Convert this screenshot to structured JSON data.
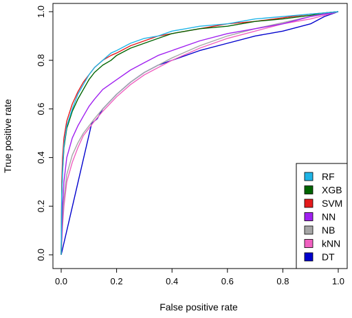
{
  "chart_data": {
    "type": "line",
    "xlabel": "False positive rate",
    "ylabel": "True positive rate",
    "xlim": [
      0,
      1
    ],
    "ylim": [
      0,
      1
    ],
    "xticks": [
      "0.0",
      "0.2",
      "0.4",
      "0.6",
      "0.8",
      "1.0"
    ],
    "yticks": [
      "0.0",
      "0.2",
      "0.4",
      "0.6",
      "0.8",
      "1.0"
    ],
    "grid": false,
    "legend_position": "bottom-right",
    "series": [
      {
        "name": "RF",
        "color": "#1fb4e6",
        "x": [
          0,
          0.002,
          0.005,
          0.01,
          0.02,
          0.04,
          0.06,
          0.08,
          0.1,
          0.12,
          0.15,
          0.18,
          0.2,
          0.25,
          0.3,
          0.35,
          0.4,
          0.45,
          0.5,
          0.6,
          0.7,
          0.8,
          0.9,
          0.95,
          1.0
        ],
        "y": [
          0,
          0.25,
          0.35,
          0.45,
          0.53,
          0.6,
          0.66,
          0.7,
          0.74,
          0.77,
          0.8,
          0.83,
          0.84,
          0.87,
          0.89,
          0.9,
          0.92,
          0.93,
          0.94,
          0.95,
          0.97,
          0.98,
          0.99,
          0.995,
          1.0
        ]
      },
      {
        "name": "XGB",
        "color": "#006400",
        "x": [
          0,
          0.002,
          0.005,
          0.01,
          0.02,
          0.04,
          0.06,
          0.08,
          0.1,
          0.12,
          0.15,
          0.18,
          0.2,
          0.25,
          0.3,
          0.35,
          0.4,
          0.45,
          0.5,
          0.6,
          0.7,
          0.8,
          0.9,
          0.95,
          1.0
        ],
        "y": [
          0,
          0.24,
          0.34,
          0.44,
          0.52,
          0.59,
          0.64,
          0.68,
          0.72,
          0.75,
          0.78,
          0.8,
          0.82,
          0.85,
          0.87,
          0.89,
          0.91,
          0.92,
          0.93,
          0.94,
          0.96,
          0.97,
          0.985,
          0.995,
          1.0
        ]
      },
      {
        "name": "SVM",
        "color": "#e41a1c",
        "x": [
          0,
          0.002,
          0.005,
          0.01,
          0.02,
          0.04,
          0.06,
          0.08,
          0.1,
          0.12,
          0.15,
          0.18,
          0.2,
          0.25,
          0.3,
          0.35,
          0.4,
          0.45,
          0.5,
          0.6,
          0.7,
          0.8,
          0.9,
          0.95,
          1.0
        ],
        "y": [
          0,
          0.3,
          0.4,
          0.48,
          0.55,
          0.62,
          0.67,
          0.71,
          0.74,
          0.77,
          0.8,
          0.82,
          0.83,
          0.86,
          0.88,
          0.9,
          0.91,
          0.92,
          0.93,
          0.95,
          0.96,
          0.975,
          0.99,
          0.995,
          1.0
        ]
      },
      {
        "name": "NN",
        "color": "#a020f0",
        "x": [
          0,
          0.005,
          0.01,
          0.02,
          0.04,
          0.06,
          0.08,
          0.1,
          0.12,
          0.15,
          0.2,
          0.25,
          0.3,
          0.35,
          0.4,
          0.5,
          0.6,
          0.7,
          0.8,
          0.9,
          0.95,
          1.0
        ],
        "y": [
          0,
          0.2,
          0.3,
          0.4,
          0.48,
          0.53,
          0.57,
          0.61,
          0.64,
          0.68,
          0.72,
          0.76,
          0.79,
          0.82,
          0.84,
          0.88,
          0.91,
          0.93,
          0.95,
          0.98,
          0.99,
          1.0
        ]
      },
      {
        "name": "NB",
        "color": "#a6a6a6",
        "x": [
          0,
          0.005,
          0.01,
          0.02,
          0.04,
          0.06,
          0.08,
          0.1,
          0.12,
          0.15,
          0.2,
          0.25,
          0.3,
          0.35,
          0.4,
          0.5,
          0.6,
          0.7,
          0.8,
          0.9,
          0.95,
          1.0
        ],
        "y": [
          0,
          0.15,
          0.23,
          0.33,
          0.41,
          0.46,
          0.5,
          0.53,
          0.56,
          0.6,
          0.66,
          0.71,
          0.75,
          0.78,
          0.81,
          0.86,
          0.9,
          0.93,
          0.955,
          0.98,
          0.99,
          1.0
        ]
      },
      {
        "name": "kNN",
        "color": "#f060c0",
        "x": [
          0,
          0.005,
          0.01,
          0.02,
          0.04,
          0.06,
          0.08,
          0.1,
          0.12,
          0.15,
          0.2,
          0.25,
          0.3,
          0.35,
          0.4,
          0.5,
          0.6,
          0.7,
          0.8,
          0.9,
          0.95,
          1.0
        ],
        "y": [
          0,
          0.12,
          0.2,
          0.3,
          0.38,
          0.44,
          0.49,
          0.52,
          0.55,
          0.59,
          0.65,
          0.7,
          0.74,
          0.77,
          0.8,
          0.85,
          0.89,
          0.92,
          0.95,
          0.97,
          0.985,
          1.0
        ]
      },
      {
        "name": "DT",
        "color": "#0000cd",
        "x": [
          0,
          0.11,
          0.13,
          0.15,
          0.2,
          0.25,
          0.3,
          0.35,
          0.4,
          0.5,
          0.6,
          0.7,
          0.8,
          0.9,
          0.95,
          1.0
        ],
        "y": [
          0,
          0.54,
          0.56,
          0.6,
          0.66,
          0.71,
          0.75,
          0.78,
          0.8,
          0.84,
          0.87,
          0.9,
          0.92,
          0.95,
          0.98,
          1.0
        ]
      }
    ]
  }
}
